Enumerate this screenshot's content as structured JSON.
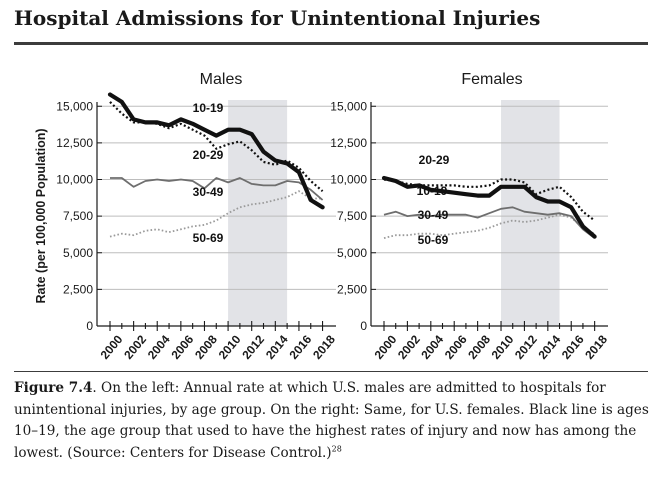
{
  "title": "Hospital Admissions for Unintentional Injuries",
  "caption": {
    "label": "Figure 7.4",
    "text": ". On the left: Annual rate at which U.S. males are admitted to hospitals for unintentional injuries, by age group. On the right: Same, for U.S. females. Black line is ages 10–19, the age group that used to have the highest rates of injury and now has among the lowest. (Source: Centers for Disease Control.)",
    "footnote": "28"
  },
  "chart_data": [
    {
      "type": "line",
      "title": "Males",
      "ylabel": "Rate (per 100,000 Population)",
      "ylim": [
        0,
        16000
      ],
      "yticks": [
        0,
        2500,
        5000,
        7500,
        10000,
        12500,
        15000
      ],
      "yticklabels": [
        "0",
        "2,500",
        "5,000",
        "7,500",
        "10,000",
        "12,500",
        "15,000"
      ],
      "xlim": [
        2000,
        2018.8
      ],
      "xticklabels": [
        "2000",
        "2002",
        "2004",
        "2006",
        "2008",
        "2010",
        "2012",
        "2014",
        "2016",
        "2018"
      ],
      "shaded_x": [
        2010,
        2015
      ],
      "x": [
        2000,
        2001,
        2002,
        2003,
        2004,
        2005,
        2006,
        2007,
        2008,
        2009,
        2010,
        2011,
        2012,
        2013,
        2014,
        2015,
        2016,
        2017,
        2018
      ],
      "series": [
        {
          "name": "10-19",
          "style": "thick",
          "values": [
            15800,
            15300,
            14100,
            13900,
            13900,
            13700,
            14100,
            13800,
            13400,
            13000,
            13400,
            13400,
            13100,
            11900,
            11300,
            11100,
            10500,
            8600,
            8100
          ]
        },
        {
          "name": "20-29",
          "style": "dotted",
          "values": [
            15300,
            14500,
            13900,
            13900,
            13800,
            13500,
            13800,
            13400,
            13000,
            12100,
            12400,
            12600,
            12000,
            11200,
            11000,
            11300,
            10800,
            9900,
            9200
          ]
        },
        {
          "name": "30-49",
          "style": "gray",
          "values": [
            10100,
            10100,
            9500,
            9900,
            10000,
            9900,
            10000,
            9900,
            9400,
            10100,
            9800,
            10100,
            9700,
            9600,
            9600,
            9900,
            9800,
            9300,
            8600
          ]
        },
        {
          "name": "50-69",
          "style": "lightdotted",
          "values": [
            6100,
            6300,
            6200,
            6500,
            6600,
            6400,
            6600,
            6800,
            6900,
            7200,
            7700,
            8100,
            8300,
            8400,
            8600,
            8800,
            9200,
            8700,
            8700
          ]
        }
      ],
      "label_positions": "inline"
    },
    {
      "type": "line",
      "title": "Females",
      "ylim": [
        0,
        16000
      ],
      "yticks": [
        0,
        2500,
        5000,
        7500,
        10000,
        12500,
        15000
      ],
      "yticklabels": [
        "0",
        "2,500",
        "5,000",
        "7,500",
        "10,000",
        "12,500",
        "15,000"
      ],
      "xlim": [
        2000,
        2018.8
      ],
      "xticklabels": [
        "2000",
        "2002",
        "2004",
        "2006",
        "2008",
        "2010",
        "2012",
        "2014",
        "2016",
        "2018"
      ],
      "shaded_x": [
        2010,
        2015
      ],
      "x": [
        2000,
        2001,
        2002,
        2003,
        2004,
        2005,
        2006,
        2007,
        2008,
        2009,
        2010,
        2011,
        2012,
        2013,
        2014,
        2015,
        2016,
        2017,
        2018
      ],
      "series": [
        {
          "name": "20-29",
          "style": "dotted",
          "values": [
            10000,
            9900,
            9700,
            9600,
            9600,
            9600,
            9600,
            9500,
            9500,
            9600,
            10000,
            10000,
            9800,
            9000,
            9300,
            9500,
            8800,
            7800,
            7200
          ]
        },
        {
          "name": "10-19",
          "style": "thick",
          "values": [
            10100,
            9900,
            9500,
            9600,
            9300,
            9200,
            9100,
            9000,
            8900,
            8900,
            9500,
            9500,
            9500,
            8800,
            8500,
            8500,
            8100,
            6800,
            6100
          ]
        },
        {
          "name": "30-49",
          "style": "gray",
          "values": [
            7600,
            7800,
            7500,
            7600,
            7500,
            7600,
            7600,
            7600,
            7400,
            7700,
            8000,
            8100,
            7800,
            7700,
            7600,
            7700,
            7500,
            6600,
            6000
          ]
        },
        {
          "name": "50-69",
          "style": "lightdotted",
          "values": [
            6000,
            6200,
            6200,
            6300,
            6300,
            6200,
            6300,
            6400,
            6500,
            6700,
            7000,
            7200,
            7100,
            7200,
            7400,
            7600,
            7400,
            6700,
            6300
          ]
        }
      ],
      "label_positions": "inline"
    }
  ]
}
